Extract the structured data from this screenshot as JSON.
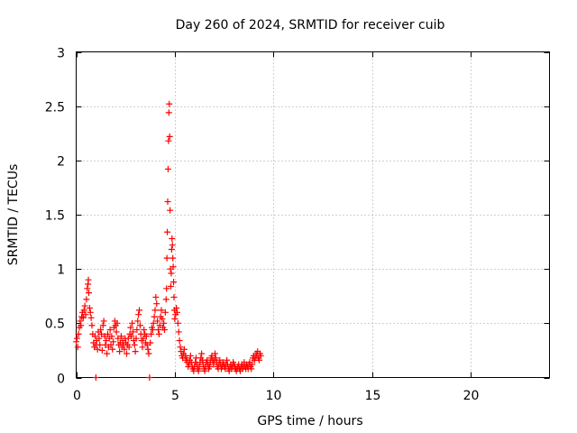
{
  "chart_data": {
    "type": "scatter",
    "title": "Day 260 of 2024, SRMTID for receiver cuib",
    "xlabel": "GPS time / hours",
    "ylabel": "SRMTID / TECUs",
    "xlim": [
      0,
      24
    ],
    "ylim": [
      0,
      3
    ],
    "xticks": [
      0,
      5,
      10,
      15,
      20
    ],
    "yticks": [
      0,
      0.5,
      1,
      1.5,
      2,
      2.5,
      3
    ],
    "xtick_labels": [
      "0",
      "5",
      "10",
      "15",
      "20"
    ],
    "ytick_labels": [
      "0",
      "0.5",
      "1",
      "1.5",
      "2",
      "2.5",
      "3"
    ],
    "grid": true,
    "marker": "+",
    "color": "#ff0000",
    "series": [
      {
        "name": "SRMTID",
        "points": [
          [
            0.0,
            0.33
          ],
          [
            0.04,
            0.36
          ],
          [
            0.08,
            0.28
          ],
          [
            0.12,
            0.4
          ],
          [
            0.16,
            0.46
          ],
          [
            0.2,
            0.52
          ],
          [
            0.24,
            0.48
          ],
          [
            0.28,
            0.56
          ],
          [
            0.32,
            0.6
          ],
          [
            0.36,
            0.55
          ],
          [
            0.4,
            0.62
          ],
          [
            0.44,
            0.66
          ],
          [
            0.48,
            0.58
          ],
          [
            0.52,
            0.72
          ],
          [
            0.56,
            0.82
          ],
          [
            0.6,
            0.86
          ],
          [
            0.62,
            0.9
          ],
          [
            0.64,
            0.78
          ],
          [
            0.68,
            0.64
          ],
          [
            0.72,
            0.6
          ],
          [
            0.76,
            0.55
          ],
          [
            0.8,
            0.48
          ],
          [
            0.84,
            0.4
          ],
          [
            0.88,
            0.32
          ],
          [
            0.92,
            0.28
          ],
          [
            0.96,
            0.38
          ],
          [
            1.0,
            0.0
          ],
          [
            1.0,
            0.3
          ],
          [
            1.04,
            0.34
          ],
          [
            1.08,
            0.26
          ],
          [
            1.12,
            0.42
          ],
          [
            1.16,
            0.36
          ],
          [
            1.2,
            0.3
          ],
          [
            1.24,
            0.44
          ],
          [
            1.28,
            0.4
          ],
          [
            1.32,
            0.25
          ],
          [
            1.36,
            0.48
          ],
          [
            1.4,
            0.52
          ],
          [
            1.44,
            0.38
          ],
          [
            1.48,
            0.3
          ],
          [
            1.52,
            0.34
          ],
          [
            1.56,
            0.22
          ],
          [
            1.6,
            0.4
          ],
          [
            1.64,
            0.28
          ],
          [
            1.68,
            0.36
          ],
          [
            1.72,
            0.44
          ],
          [
            1.76,
            0.3
          ],
          [
            1.8,
            0.38
          ],
          [
            1.84,
            0.26
          ],
          [
            1.88,
            0.33
          ],
          [
            1.92,
            0.46
          ],
          [
            1.96,
            0.52
          ],
          [
            2.0,
            0.48
          ],
          [
            2.04,
            0.42
          ],
          [
            2.08,
            0.5
          ],
          [
            2.12,
            0.36
          ],
          [
            2.16,
            0.3
          ],
          [
            2.2,
            0.24
          ],
          [
            2.24,
            0.32
          ],
          [
            2.28,
            0.38
          ],
          [
            2.32,
            0.28
          ],
          [
            2.36,
            0.34
          ],
          [
            2.4,
            0.3
          ],
          [
            2.44,
            0.26
          ],
          [
            2.48,
            0.36
          ],
          [
            2.52,
            0.32
          ],
          [
            2.56,
            0.22
          ],
          [
            2.6,
            0.3
          ],
          [
            2.64,
            0.36
          ],
          [
            2.68,
            0.28
          ],
          [
            2.72,
            0.4
          ],
          [
            2.76,
            0.46
          ],
          [
            2.8,
            0.38
          ],
          [
            2.84,
            0.5
          ],
          [
            2.88,
            0.42
          ],
          [
            2.92,
            0.34
          ],
          [
            2.96,
            0.3
          ],
          [
            3.0,
            0.24
          ],
          [
            3.04,
            0.36
          ],
          [
            3.08,
            0.44
          ],
          [
            3.12,
            0.52
          ],
          [
            3.16,
            0.58
          ],
          [
            3.2,
            0.62
          ],
          [
            3.24,
            0.48
          ],
          [
            3.28,
            0.4
          ],
          [
            3.32,
            0.34
          ],
          [
            3.36,
            0.28
          ],
          [
            3.4,
            0.36
          ],
          [
            3.44,
            0.44
          ],
          [
            3.48,
            0.4
          ],
          [
            3.52,
            0.32
          ],
          [
            3.56,
            0.38
          ],
          [
            3.6,
            0.3
          ],
          [
            3.64,
            0.26
          ],
          [
            3.68,
            0.22
          ],
          [
            3.72,
            0.0
          ],
          [
            3.76,
            0.32
          ],
          [
            3.8,
            0.4
          ],
          [
            3.84,
            0.46
          ],
          [
            3.88,
            0.44
          ],
          [
            3.92,
            0.5
          ],
          [
            3.96,
            0.56
          ],
          [
            4.0,
            0.62
          ],
          [
            4.04,
            0.74
          ],
          [
            4.08,
            0.68
          ],
          [
            4.12,
            0.52
          ],
          [
            4.16,
            0.44
          ],
          [
            4.2,
            0.4
          ],
          [
            4.24,
            0.48
          ],
          [
            4.28,
            0.56
          ],
          [
            4.32,
            0.62
          ],
          [
            4.36,
            0.54
          ],
          [
            4.4,
            0.46
          ],
          [
            4.44,
            0.5
          ],
          [
            4.48,
            0.44
          ],
          [
            4.52,
            0.6
          ],
          [
            4.56,
            0.72
          ],
          [
            4.58,
            0.82
          ],
          [
            4.6,
            1.1
          ],
          [
            4.62,
            1.34
          ],
          [
            4.64,
            1.62
          ],
          [
            4.66,
            1.92
          ],
          [
            4.68,
            2.18
          ],
          [
            4.7,
            2.44
          ],
          [
            4.72,
            2.52
          ],
          [
            4.74,
            2.22
          ],
          [
            4.76,
            1.54
          ],
          [
            4.78,
            1.0
          ],
          [
            4.8,
            0.84
          ],
          [
            4.82,
            0.96
          ],
          [
            4.84,
            1.18
          ],
          [
            4.86,
            1.28
          ],
          [
            4.88,
            1.22
          ],
          [
            4.9,
            1.1
          ],
          [
            4.92,
            1.02
          ],
          [
            4.94,
            0.88
          ],
          [
            4.96,
            0.74
          ],
          [
            4.98,
            0.62
          ],
          [
            5.0,
            0.54
          ],
          [
            5.04,
            0.58
          ],
          [
            5.08,
            0.64
          ],
          [
            5.12,
            0.6
          ],
          [
            5.16,
            0.5
          ],
          [
            5.2,
            0.42
          ],
          [
            5.24,
            0.34
          ],
          [
            5.28,
            0.28
          ],
          [
            5.32,
            0.24
          ],
          [
            5.36,
            0.2
          ],
          [
            5.4,
            0.18
          ],
          [
            5.44,
            0.22
          ],
          [
            5.48,
            0.26
          ],
          [
            5.52,
            0.2
          ],
          [
            5.56,
            0.16
          ],
          [
            5.6,
            0.18
          ],
          [
            5.64,
            0.14
          ],
          [
            5.68,
            0.1
          ],
          [
            5.72,
            0.12
          ],
          [
            5.76,
            0.16
          ],
          [
            5.8,
            0.2
          ],
          [
            5.84,
            0.14
          ],
          [
            5.88,
            0.1
          ],
          [
            5.92,
            0.08
          ],
          [
            5.96,
            0.06
          ],
          [
            6.0,
            0.1
          ],
          [
            6.04,
            0.14
          ],
          [
            6.08,
            0.18
          ],
          [
            6.12,
            0.12
          ],
          [
            6.16,
            0.08
          ],
          [
            6.2,
            0.06
          ],
          [
            6.24,
            0.1
          ],
          [
            6.28,
            0.14
          ],
          [
            6.32,
            0.18
          ],
          [
            6.36,
            0.22
          ],
          [
            6.4,
            0.16
          ],
          [
            6.44,
            0.12
          ],
          [
            6.48,
            0.08
          ],
          [
            6.52,
            0.06
          ],
          [
            6.56,
            0.1
          ],
          [
            6.6,
            0.14
          ],
          [
            6.64,
            0.16
          ],
          [
            6.68,
            0.12
          ],
          [
            6.72,
            0.08
          ],
          [
            6.76,
            0.1
          ],
          [
            6.8,
            0.14
          ],
          [
            6.84,
            0.18
          ],
          [
            6.88,
            0.2
          ],
          [
            6.92,
            0.16
          ],
          [
            6.96,
            0.12
          ],
          [
            7.0,
            0.16
          ],
          [
            7.04,
            0.22
          ],
          [
            7.08,
            0.18
          ],
          [
            7.12,
            0.14
          ],
          [
            7.16,
            0.1
          ],
          [
            7.2,
            0.08
          ],
          [
            7.24,
            0.12
          ],
          [
            7.28,
            0.16
          ],
          [
            7.32,
            0.12
          ],
          [
            7.36,
            0.08
          ],
          [
            7.4,
            0.1
          ],
          [
            7.44,
            0.14
          ],
          [
            7.48,
            0.12
          ],
          [
            7.52,
            0.1
          ],
          [
            7.56,
            0.08
          ],
          [
            7.6,
            0.12
          ],
          [
            7.64,
            0.16
          ],
          [
            7.68,
            0.12
          ],
          [
            7.72,
            0.08
          ],
          [
            7.76,
            0.06
          ],
          [
            7.8,
            0.1
          ],
          [
            7.84,
            0.12
          ],
          [
            7.88,
            0.08
          ],
          [
            7.92,
            0.1
          ],
          [
            7.96,
            0.14
          ],
          [
            8.0,
            0.12
          ],
          [
            8.04,
            0.1
          ],
          [
            8.08,
            0.08
          ],
          [
            8.12,
            0.06
          ],
          [
            8.16,
            0.08
          ],
          [
            8.2,
            0.1
          ],
          [
            8.24,
            0.12
          ],
          [
            8.28,
            0.08
          ],
          [
            8.32,
            0.06
          ],
          [
            8.36,
            0.1
          ],
          [
            8.4,
            0.12
          ],
          [
            8.44,
            0.08
          ],
          [
            8.48,
            0.1
          ],
          [
            8.52,
            0.14
          ],
          [
            8.56,
            0.1
          ],
          [
            8.6,
            0.08
          ],
          [
            8.64,
            0.12
          ],
          [
            8.68,
            0.1
          ],
          [
            8.72,
            0.08
          ],
          [
            8.76,
            0.12
          ],
          [
            8.8,
            0.14
          ],
          [
            8.84,
            0.1
          ],
          [
            8.88,
            0.08
          ],
          [
            8.92,
            0.12
          ],
          [
            8.96,
            0.18
          ],
          [
            9.0,
            0.2
          ],
          [
            9.04,
            0.16
          ],
          [
            9.08,
            0.18
          ],
          [
            9.12,
            0.22
          ],
          [
            9.16,
            0.2
          ],
          [
            9.2,
            0.24
          ],
          [
            9.24,
            0.18
          ],
          [
            9.28,
            0.16
          ],
          [
            9.32,
            0.22
          ],
          [
            9.36,
            0.2
          ]
        ]
      }
    ]
  }
}
